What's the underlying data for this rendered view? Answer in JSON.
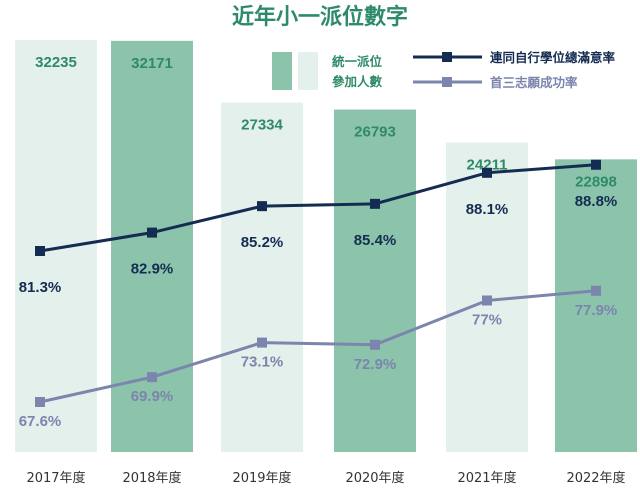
{
  "colors": {
    "title": "#2e8b6a",
    "bar_light": "#e3f0ec",
    "bar_dark": "#8cc4ab",
    "bar_value": "#2f8a66",
    "series_a": "#152c52",
    "series_b": "#7b85ad"
  },
  "chart_data": {
    "type": "bar+line",
    "title": "近年小一派位數字",
    "categories": [
      "2017年度",
      "2018年度",
      "2019年度",
      "2020年度",
      "2021年度",
      "2022年度"
    ],
    "bars": {
      "name": "統一派位參加人數",
      "name_lines": [
        "統一派位",
        "參加人數"
      ],
      "values": [
        32235,
        32171,
        27334,
        26793,
        24211,
        22898
      ],
      "labels": [
        "32235",
        "32171",
        "27334",
        "26793",
        "24211",
        "22898"
      ]
    },
    "series": [
      {
        "name": "連同自行學位總滿意率",
        "values": [
          81.3,
          82.9,
          85.2,
          85.4,
          88.1,
          88.8
        ],
        "labels": [
          "81.3%",
          "82.9%",
          "85.2%",
          "85.4%",
          "88.1%",
          "88.8%"
        ]
      },
      {
        "name": "首三志願成功率",
        "values": [
          67.6,
          69.9,
          73.1,
          72.9,
          77.0,
          77.9
        ],
        "labels": [
          "67.6%",
          "69.9%",
          "73.1%",
          "72.9%",
          "77%",
          "77.9%"
        ]
      }
    ],
    "unit": "%"
  }
}
